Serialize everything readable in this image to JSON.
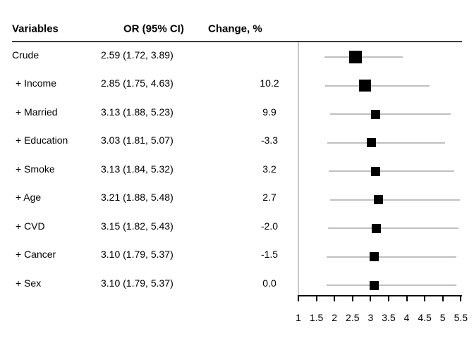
{
  "table": {
    "headers": {
      "variables": "Variables",
      "or_ci": "OR (95% CI)",
      "change": "Change, %"
    }
  },
  "chart_data": {
    "type": "scatter",
    "subtype": "forest-plot",
    "title": "",
    "xlabel": "",
    "ylabel": "",
    "xlim": [
      1,
      5.5
    ],
    "x_ticks": [
      "1",
      "1.5",
      "2",
      "2.5",
      "3",
      "3.5",
      "4",
      "4.5",
      "5",
      "5.5"
    ],
    "x_tick_values": [
      1,
      1.5,
      2,
      2.5,
      3,
      3.5,
      4,
      4.5,
      5,
      5.5
    ],
    "reference_line_x": 1,
    "grid": false,
    "rows": [
      {
        "label": "Crude",
        "or_ci": "2.59 (1.72, 3.89)",
        "change": "",
        "or": 2.59,
        "lo": 1.72,
        "hi": 3.89,
        "marker_px": 18,
        "indented": false
      },
      {
        "label": "+ Income",
        "or_ci": "2.85 (1.75, 4.63)",
        "change": "10.2",
        "or": 2.85,
        "lo": 1.75,
        "hi": 4.63,
        "marker_px": 17,
        "indented": true
      },
      {
        "label": "+ Married",
        "or_ci": "3.13 (1.88, 5.23)",
        "change": "9.9",
        "or": 3.13,
        "lo": 1.88,
        "hi": 5.23,
        "marker_px": 13,
        "indented": true
      },
      {
        "label": "+ Education",
        "or_ci": "3.03 (1.81, 5.07)",
        "change": "-3.3",
        "or": 3.03,
        "lo": 1.81,
        "hi": 5.07,
        "marker_px": 13,
        "indented": true
      },
      {
        "label": "+ Smoke",
        "or_ci": "3.13 (1.84, 5.32)",
        "change": "3.2",
        "or": 3.13,
        "lo": 1.84,
        "hi": 5.32,
        "marker_px": 13,
        "indented": true
      },
      {
        "label": "+ Age",
        "or_ci": "3.21 (1.88, 5.48)",
        "change": "2.7",
        "or": 3.21,
        "lo": 1.88,
        "hi": 5.48,
        "marker_px": 13,
        "indented": true
      },
      {
        "label": "+ CVD",
        "or_ci": "3.15 (1.82, 5.43)",
        "change": "-2.0",
        "or": 3.15,
        "lo": 1.82,
        "hi": 5.43,
        "marker_px": 13,
        "indented": true
      },
      {
        "label": "+ Cancer",
        "or_ci": "3.10 (1.79, 5.37)",
        "change": "-1.5",
        "or": 3.1,
        "lo": 1.79,
        "hi": 5.37,
        "marker_px": 13,
        "indented": true
      },
      {
        "label": "+ Sex",
        "or_ci": "3.10 (1.79, 5.37)",
        "change": "0.0",
        "or": 3.1,
        "lo": 1.79,
        "hi": 5.37,
        "marker_px": 13,
        "indented": true
      }
    ]
  },
  "colors": {
    "background": "#ffffff",
    "text": "#000000",
    "marker": "#000000",
    "ci_line": "#c0c0c0",
    "reference_line": "#c9c9c9",
    "axis": "#000000",
    "header_rule": "#3a3a3a"
  }
}
